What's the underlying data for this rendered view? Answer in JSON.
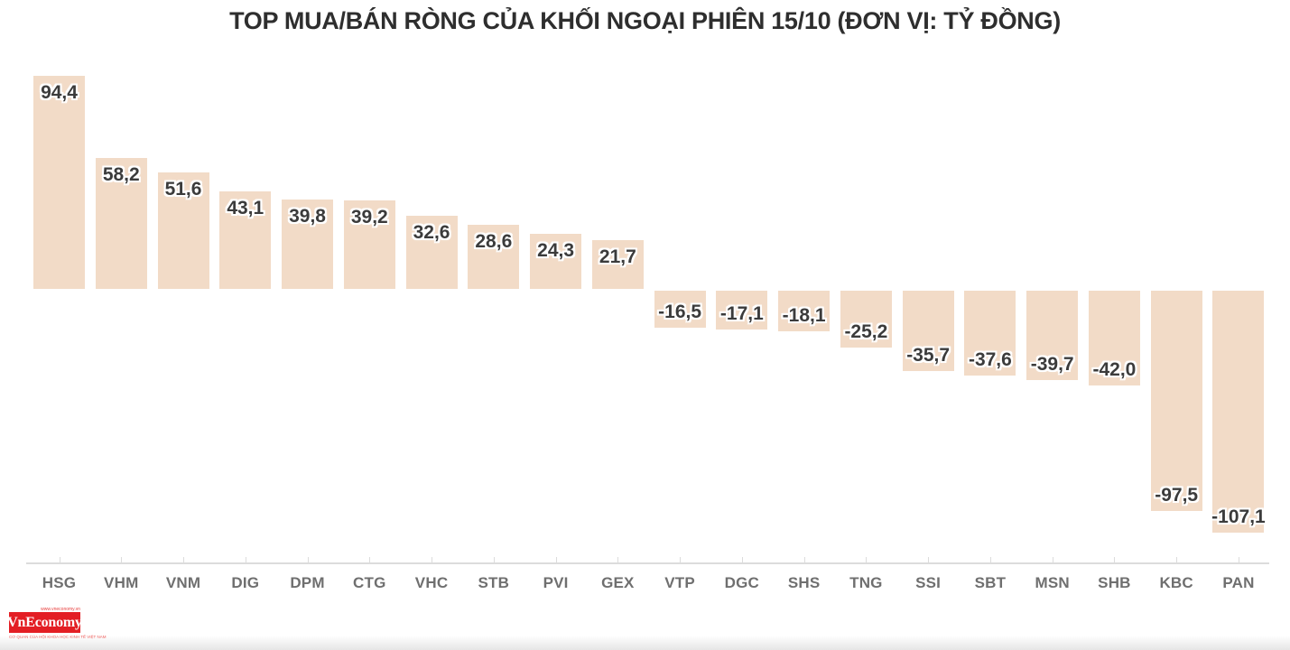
{
  "title": "TOP MUA/BÁN RÒNG CỦA KHỐI NGOẠI PHIÊN 15/10 (ĐƠN VỊ: TỶ ĐỒNG)",
  "chart_data": {
    "type": "bar",
    "title": "TOP MUA/BÁN RÒNG CỦA KHỐI NGOẠI PHIÊN 15/10 (ĐƠN VỊ: TỶ ĐỒNG)",
    "unit": "tỷ đồng",
    "categories": [
      "HSG",
      "VHM",
      "VNM",
      "DIG",
      "DPM",
      "CTG",
      "VHC",
      "STB",
      "PVI",
      "GEX",
      "VTP",
      "DGC",
      "SHS",
      "TNG",
      "SSI",
      "SBT",
      "MSN",
      "SHB",
      "KBC",
      "PAN"
    ],
    "values": [
      94.4,
      58.2,
      51.6,
      43.1,
      39.8,
      39.2,
      32.6,
      28.6,
      24.3,
      21.7,
      -16.5,
      -17.1,
      -18.1,
      -25.2,
      -35.7,
      -37.6,
      -39.7,
      -42.0,
      -97.5,
      -107.1
    ],
    "value_labels": [
      "94,4",
      "58,2",
      "51,6",
      "43,1",
      "39,8",
      "39,2",
      "32,6",
      "28,6",
      "24,3",
      "21,7",
      "-16,5",
      "-17,1",
      "-18,1",
      "-25,2",
      "-35,7",
      "-37,6",
      "-39,7",
      "-42,0",
      "-97,5",
      "-107,1"
    ],
    "decimal_separator": ",",
    "ylim": [
      -115,
      100
    ],
    "grid": false,
    "legend": false,
    "bar_color": "#f2dbc7",
    "value_label_color": "#3b3b3b",
    "axis_label_color": "#6f6f6f",
    "axis_line_color": "#dcdcdc",
    "title_color": "#2e2e2e"
  },
  "branding": {
    "logo_text": "VnEconomy",
    "logo_tagline_top": "www.vneconomy.vn",
    "logo_tagline_bottom": "CƠ QUAN CỦA HỘI KHOA HỌC KINH TẾ VIỆT NAM",
    "logo_bg_color": "#e31e24",
    "logo_text_color": "#ffffff"
  }
}
